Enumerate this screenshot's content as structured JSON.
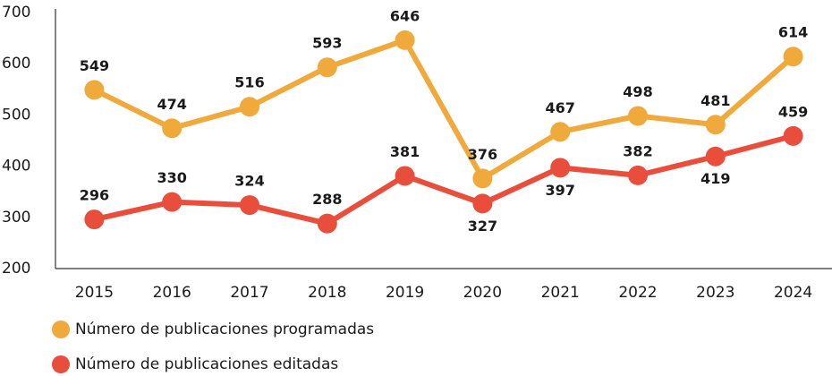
{
  "chart_data": {
    "type": "line",
    "categories": [
      "2015",
      "2016",
      "2017",
      "2018",
      "2019",
      "2020",
      "2021",
      "2022",
      "2023",
      "2024"
    ],
    "series": [
      {
        "name": "Número de publicaciones programadas",
        "color": "#f0aa3c",
        "values": [
          549,
          474,
          516,
          593,
          646,
          376,
          467,
          498,
          481,
          614
        ]
      },
      {
        "name": "Número de publicaciones editadas",
        "color": "#e94e3c",
        "values": [
          296,
          330,
          324,
          288,
          381,
          327,
          397,
          382,
          419,
          459
        ]
      }
    ],
    "ylim": [
      200,
      700
    ],
    "yticks": [
      200,
      300,
      400,
      500,
      600,
      700
    ],
    "grid": false
  }
}
